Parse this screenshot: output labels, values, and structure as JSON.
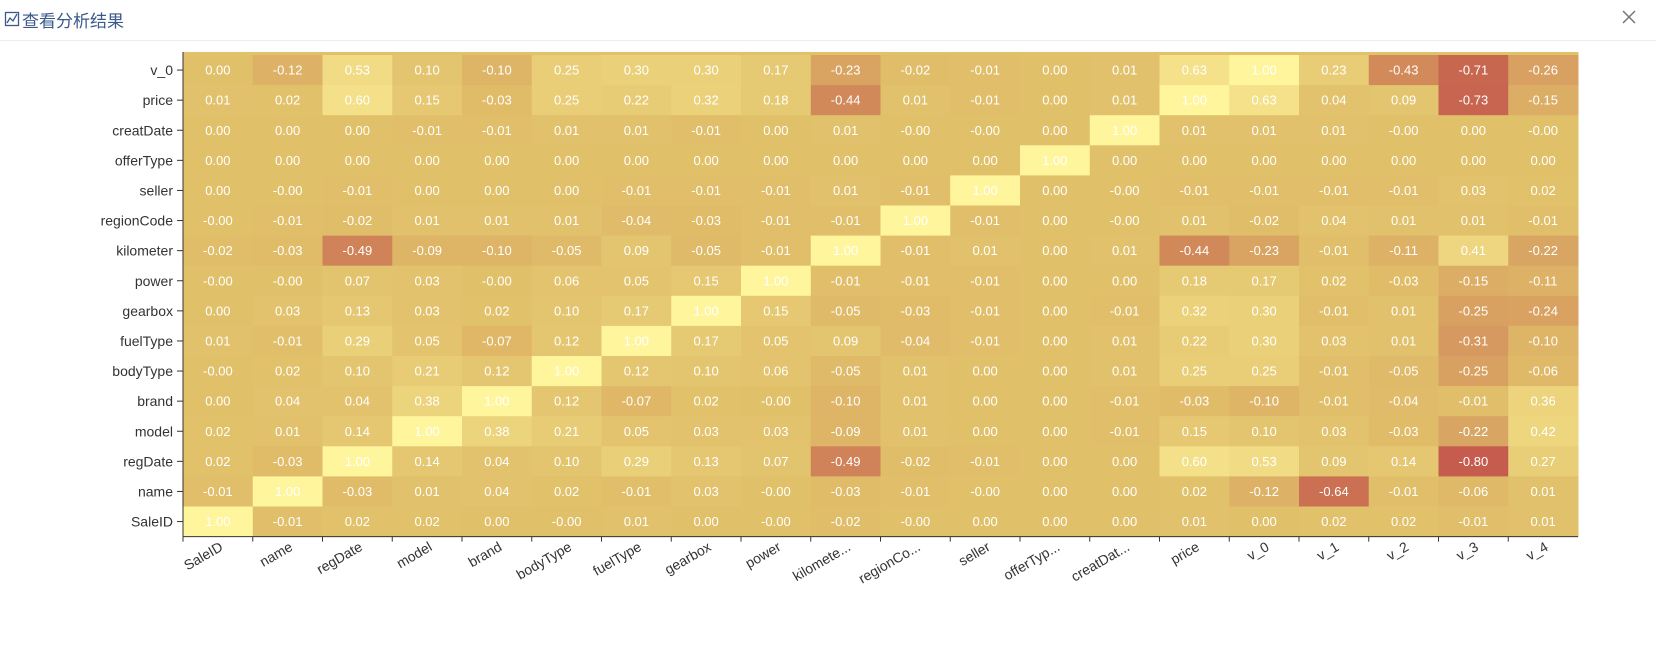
{
  "dialog": {
    "title": "查看分析结果",
    "icon": "chart-icon",
    "close_icon": "close-icon"
  },
  "colors": {
    "low": "#e1c06a",
    "high": "#fff59c",
    "negative": "#c55c4d",
    "title": "#3b5a8c"
  },
  "chart_data": {
    "type": "heatmap",
    "title": "",
    "xlabel": "",
    "ylabel": "",
    "x_labels": [
      "SaleID",
      "name",
      "regDate",
      "model",
      "brand",
      "bodyType",
      "fuelType",
      "gearbox",
      "power",
      "kilomete...",
      "regionCo...",
      "seller",
      "offerTyp...",
      "creatDat...",
      "price",
      "v_0",
      "v_1",
      "v_2",
      "v_3",
      "v_4"
    ],
    "y_labels": [
      "v_0",
      "price",
      "creatDate",
      "offerType",
      "seller",
      "regionCode",
      "kilometer",
      "power",
      "gearbox",
      "fuelType",
      "bodyType",
      "brand",
      "model",
      "regDate",
      "name",
      "SaleID"
    ],
    "values": [
      [
        "0.00",
        "-0.12",
        "0.53",
        "0.10",
        "-0.10",
        "0.25",
        "0.30",
        "0.30",
        "0.17",
        "-0.23",
        "-0.02",
        "-0.01",
        "0.00",
        "0.01",
        "0.63",
        "1.00",
        "0.23",
        "-0.43",
        "-0.71",
        "-0.26"
      ],
      [
        "0.01",
        "0.02",
        "0.60",
        "0.15",
        "-0.03",
        "0.25",
        "0.22",
        "0.32",
        "0.18",
        "-0.44",
        "0.01",
        "-0.01",
        "0.00",
        "0.01",
        "1.00",
        "0.63",
        "0.04",
        "0.09",
        "-0.73",
        "-0.15"
      ],
      [
        "0.00",
        "0.00",
        "0.00",
        "-0.01",
        "-0.01",
        "0.01",
        "0.01",
        "-0.01",
        "0.00",
        "0.01",
        "-0.00",
        "-0.00",
        "0.00",
        "1.00",
        "0.01",
        "0.01",
        "0.01",
        "-0.00",
        "0.00",
        "-0.00"
      ],
      [
        "0.00",
        "0.00",
        "0.00",
        "0.00",
        "0.00",
        "0.00",
        "0.00",
        "0.00",
        "0.00",
        "0.00",
        "0.00",
        "0.00",
        "1.00",
        "0.00",
        "0.00",
        "0.00",
        "0.00",
        "0.00",
        "0.00",
        "0.00"
      ],
      [
        "0.00",
        "-0.00",
        "-0.01",
        "0.00",
        "0.00",
        "0.00",
        "-0.01",
        "-0.01",
        "-0.01",
        "0.01",
        "-0.01",
        "1.00",
        "0.00",
        "-0.00",
        "-0.01",
        "-0.01",
        "-0.01",
        "-0.01",
        "0.03",
        "0.02"
      ],
      [
        "-0.00",
        "-0.01",
        "-0.02",
        "0.01",
        "0.01",
        "0.01",
        "-0.04",
        "-0.03",
        "-0.01",
        "-0.01",
        "1.00",
        "-0.01",
        "0.00",
        "-0.00",
        "0.01",
        "-0.02",
        "0.04",
        "0.01",
        "0.01",
        "-0.01"
      ],
      [
        "-0.02",
        "-0.03",
        "-0.49",
        "-0.09",
        "-0.10",
        "-0.05",
        "0.09",
        "-0.05",
        "-0.01",
        "1.00",
        "-0.01",
        "0.01",
        "0.00",
        "0.01",
        "-0.44",
        "-0.23",
        "-0.01",
        "-0.11",
        "0.41",
        "-0.22"
      ],
      [
        "-0.00",
        "-0.00",
        "0.07",
        "0.03",
        "-0.00",
        "0.06",
        "0.05",
        "0.15",
        "1.00",
        "-0.01",
        "-0.01",
        "-0.01",
        "0.00",
        "0.00",
        "0.18",
        "0.17",
        "0.02",
        "-0.03",
        "-0.15",
        "-0.11"
      ],
      [
        "0.00",
        "0.03",
        "0.13",
        "0.03",
        "0.02",
        "0.10",
        "0.17",
        "1.00",
        "0.15",
        "-0.05",
        "-0.03",
        "-0.01",
        "0.00",
        "-0.01",
        "0.32",
        "0.30",
        "-0.01",
        "0.01",
        "-0.25",
        "-0.24"
      ],
      [
        "0.01",
        "-0.01",
        "0.29",
        "0.05",
        "-0.07",
        "0.12",
        "1.00",
        "0.17",
        "0.05",
        "0.09",
        "-0.04",
        "-0.01",
        "0.00",
        "0.01",
        "0.22",
        "0.30",
        "0.03",
        "0.01",
        "-0.31",
        "-0.10"
      ],
      [
        "-0.00",
        "0.02",
        "0.10",
        "0.21",
        "0.12",
        "1.00",
        "0.12",
        "0.10",
        "0.06",
        "-0.05",
        "0.01",
        "0.00",
        "0.00",
        "0.01",
        "0.25",
        "0.25",
        "-0.01",
        "-0.05",
        "-0.25",
        "-0.06"
      ],
      [
        "0.00",
        "0.04",
        "0.04",
        "0.38",
        "1.00",
        "0.12",
        "-0.07",
        "0.02",
        "-0.00",
        "-0.10",
        "0.01",
        "0.00",
        "0.00",
        "-0.01",
        "-0.03",
        "-0.10",
        "-0.01",
        "-0.04",
        "-0.01",
        "0.36"
      ],
      [
        "0.02",
        "0.01",
        "0.14",
        "1.00",
        "0.38",
        "0.21",
        "0.05",
        "0.03",
        "0.03",
        "-0.09",
        "0.01",
        "0.00",
        "0.00",
        "-0.01",
        "0.15",
        "0.10",
        "0.03",
        "-0.03",
        "-0.22",
        "0.42"
      ],
      [
        "0.02",
        "-0.03",
        "1.00",
        "0.14",
        "0.04",
        "0.10",
        "0.29",
        "0.13",
        "0.07",
        "-0.49",
        "-0.02",
        "-0.01",
        "0.00",
        "0.00",
        "0.60",
        "0.53",
        "0.09",
        "0.14",
        "-0.80",
        "0.27"
      ],
      [
        "-0.01",
        "1.00",
        "-0.03",
        "0.01",
        "0.04",
        "0.02",
        "-0.01",
        "0.03",
        "-0.00",
        "-0.03",
        "-0.01",
        "-0.00",
        "0.00",
        "0.00",
        "0.02",
        "-0.12",
        "-0.64",
        "-0.01",
        "-0.06",
        "0.01"
      ],
      [
        "1.00",
        "-0.01",
        "0.02",
        "0.02",
        "0.00",
        "-0.00",
        "0.01",
        "0.00",
        "-0.00",
        "-0.02",
        "-0.00",
        "0.00",
        "0.00",
        "0.00",
        "0.01",
        "0.00",
        "0.02",
        "0.02",
        "-0.01",
        "0.01"
      ]
    ],
    "value_range": [
      -0.8,
      1.0
    ],
    "grid": false,
    "legend": "none"
  }
}
